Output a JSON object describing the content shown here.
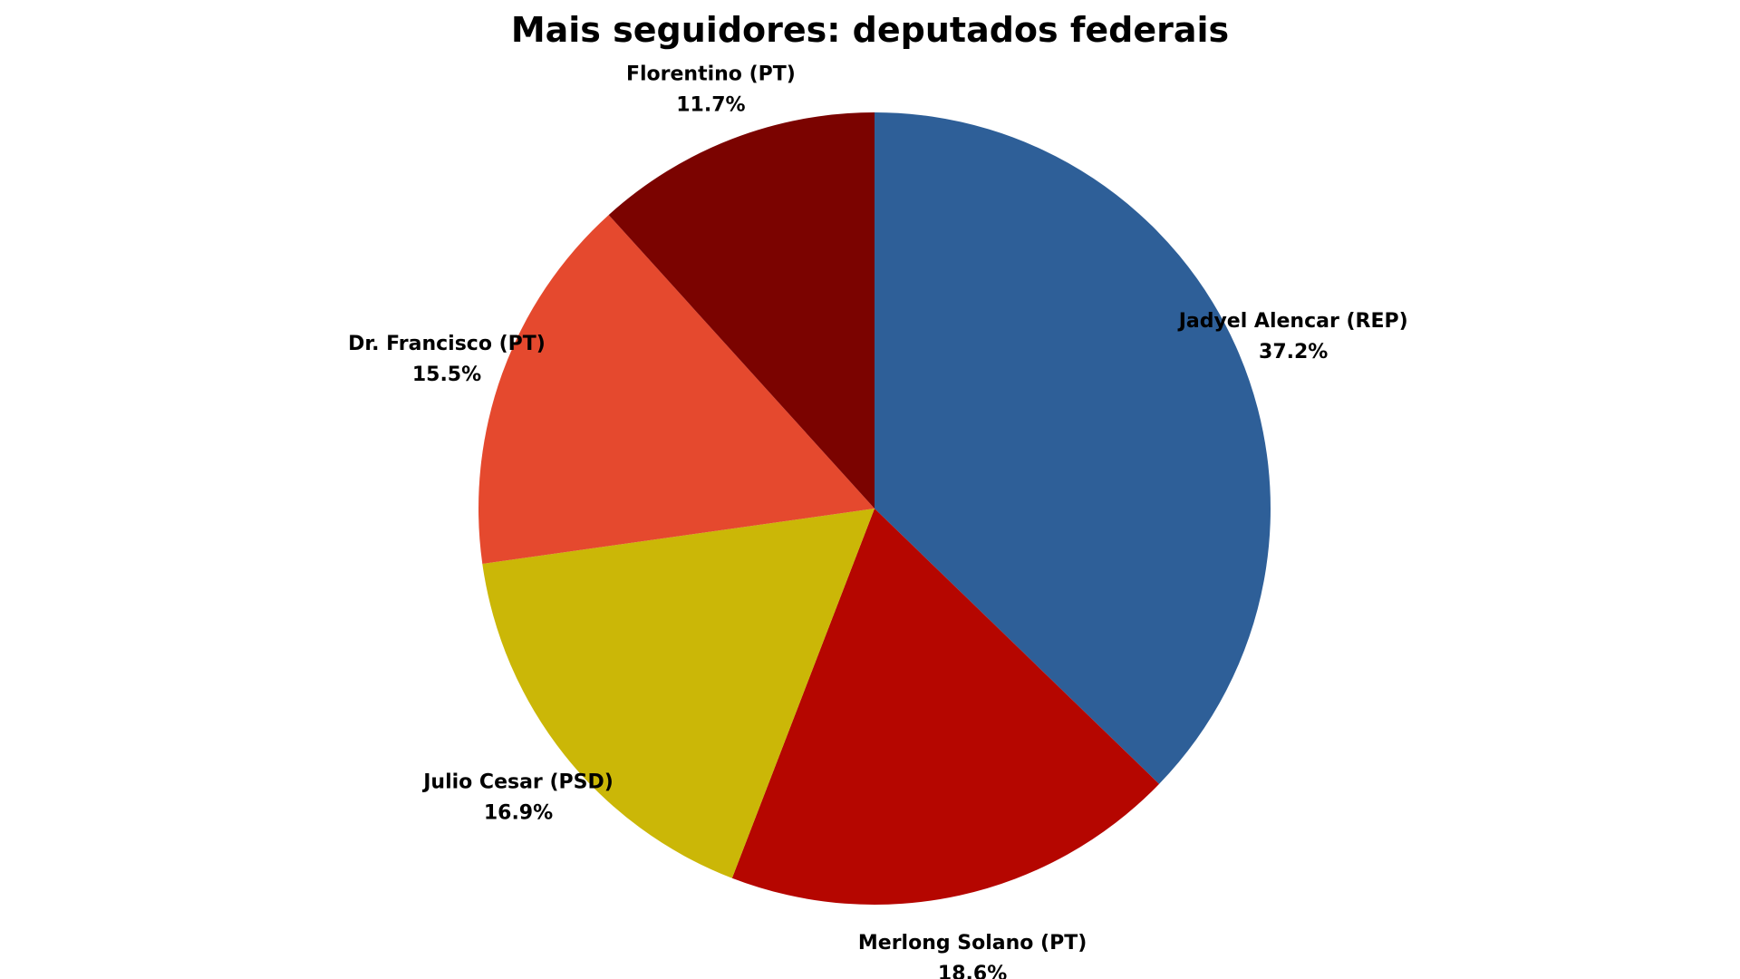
{
  "chart_data": {
    "type": "pie",
    "title": "Mais seguidores: deputados federais",
    "start_angle_deg": 0,
    "direction": "clockwise",
    "slices": [
      {
        "label": "Jadyel Alencar (REP)",
        "value": 37.2,
        "value_label": "37.2%",
        "color": "#2e5f98"
      },
      {
        "label": "Merlong Solano (PT)",
        "value": 18.6,
        "value_label": "18.6%",
        "color": "#b50600"
      },
      {
        "label": "Julio Cesar (PSD)",
        "value": 16.9,
        "value_label": "16.9%",
        "color": "#cbb707"
      },
      {
        "label": "Dr. Francisco (PT)",
        "value": 15.5,
        "value_label": "15.5%",
        "color": "#e5492e"
      },
      {
        "label": "Florentino (PT)",
        "value": 11.7,
        "value_label": "11.7%",
        "color": "#7b0300"
      }
    ]
  }
}
